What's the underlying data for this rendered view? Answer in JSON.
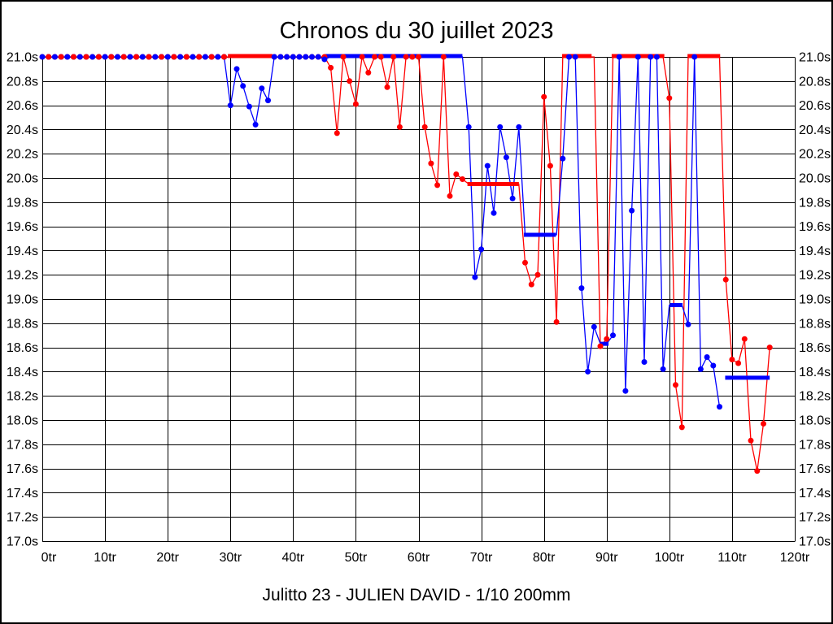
{
  "title": "Chronos du 30 juillet 2023",
  "subtitle": "Julitto 23 - JULIEN DAVID - 1/10 200mm",
  "colors": {
    "series_red": "#ff0000",
    "series_blue": "#0000ff",
    "grid": "#000000",
    "background": "#ffffff"
  },
  "chart_data": {
    "type": "line",
    "title": "Chronos du 30 juillet 2023",
    "subtitle": "Julitto 23 - JULIEN DAVID - 1/10 200mm",
    "x_unit": "tr",
    "y_unit": "s",
    "xlim": [
      0,
      120
    ],
    "ylim": [
      17.0,
      21.0
    ],
    "cap_value": 21.0,
    "grid": true,
    "x_tick_values": [
      0,
      10,
      20,
      30,
      40,
      50,
      60,
      70,
      80,
      90,
      100,
      110,
      120
    ],
    "x_ticks": [
      "0tr",
      "10tr",
      "20tr",
      "30tr",
      "40tr",
      "50tr",
      "60tr",
      "70tr",
      "80tr",
      "90tr",
      "100tr",
      "110tr",
      "120tr"
    ],
    "y_tick_values": [
      21.0,
      20.8,
      20.6,
      20.4,
      20.2,
      20.0,
      19.8,
      19.6,
      19.4,
      19.2,
      19.0,
      18.8,
      18.6,
      18.4,
      18.2,
      18.0,
      17.8,
      17.6,
      17.4,
      17.2,
      17.0
    ],
    "y_ticks": [
      "21.0s",
      "20.8s",
      "20.6s",
      "20.4s",
      "20.2s",
      "20.0s",
      "19.8s",
      "19.6s",
      "19.4s",
      "19.2s",
      "19.0s",
      "18.8s",
      "18.6s",
      "18.4s",
      "18.2s",
      "18.0s",
      "17.8s",
      "17.6s",
      "17.4s",
      "17.2s",
      "17.0s"
    ],
    "series": [
      {
        "name": "red",
        "color": "#ff0000",
        "points": [
          [
            0,
            21,
            1
          ],
          [
            1,
            21,
            1
          ],
          [
            2,
            21,
            1
          ],
          [
            3,
            21,
            1
          ],
          [
            4,
            21,
            1
          ],
          [
            5,
            21,
            1
          ],
          [
            6,
            21,
            1
          ],
          [
            7,
            21,
            1
          ],
          [
            8,
            21,
            1
          ],
          [
            9,
            21,
            1
          ],
          [
            10,
            21,
            1
          ],
          [
            11,
            21,
            1
          ],
          [
            12,
            21,
            1
          ],
          [
            13,
            21,
            1
          ],
          [
            14,
            21,
            1
          ],
          [
            15,
            21,
            1
          ],
          [
            16,
            21,
            1
          ],
          [
            17,
            21,
            1
          ],
          [
            18,
            21,
            1
          ],
          [
            19,
            21,
            1
          ],
          [
            20,
            21,
            1
          ],
          [
            21,
            21,
            1
          ],
          [
            22,
            21,
            1
          ],
          [
            23,
            21,
            1
          ],
          [
            24,
            21,
            1
          ],
          [
            25,
            21,
            1
          ],
          [
            26,
            21,
            1
          ],
          [
            27,
            21,
            1
          ],
          [
            28,
            21,
            1
          ],
          [
            29,
            21,
            1
          ],
          [
            30,
            21,
            0
          ],
          [
            31,
            21,
            0
          ],
          [
            32,
            21,
            0
          ],
          [
            33,
            21,
            0
          ],
          [
            34,
            21,
            0
          ],
          [
            35,
            21,
            0
          ],
          [
            36,
            21,
            0
          ],
          [
            37,
            21,
            1
          ],
          [
            38,
            21,
            1
          ],
          [
            39,
            21,
            1
          ],
          [
            40,
            21,
            1
          ],
          [
            41,
            21,
            1
          ],
          [
            42,
            21,
            1
          ],
          [
            43,
            21,
            1
          ],
          [
            44,
            21,
            1
          ],
          [
            45,
            21,
            1
          ],
          [
            46,
            20.91,
            1
          ],
          [
            47,
            20.37,
            1
          ],
          [
            48,
            21,
            1
          ],
          [
            49,
            20.8,
            1
          ],
          [
            50,
            20.61,
            1
          ],
          [
            51,
            21,
            1
          ],
          [
            52,
            20.87,
            1
          ],
          [
            53,
            21,
            1
          ],
          [
            54,
            21,
            1
          ],
          [
            55,
            20.75,
            1
          ],
          [
            56,
            21,
            1
          ],
          [
            57,
            20.42,
            1
          ],
          [
            58,
            21,
            1
          ],
          [
            59,
            21,
            1
          ],
          [
            60,
            21,
            1
          ],
          [
            61,
            20.42,
            1
          ],
          [
            62,
            20.12,
            1
          ],
          [
            63,
            19.94,
            1
          ],
          [
            64,
            21,
            1
          ],
          [
            65,
            19.85,
            1
          ],
          [
            66,
            20.03,
            1
          ],
          [
            67,
            19.99,
            1
          ],
          [
            68,
            19.95,
            0
          ],
          [
            69,
            19.95,
            0
          ],
          [
            70,
            19.95,
            0
          ],
          [
            71,
            19.95,
            0
          ],
          [
            72,
            19.95,
            0
          ],
          [
            73,
            19.95,
            0
          ],
          [
            74,
            19.95,
            0
          ],
          [
            75,
            19.95,
            0
          ],
          [
            76,
            19.95,
            0
          ],
          [
            77,
            19.3,
            1
          ],
          [
            78,
            19.12,
            1
          ],
          [
            79,
            19.2,
            1
          ],
          [
            80,
            20.67,
            1
          ],
          [
            81,
            20.1,
            1
          ],
          [
            82,
            18.81,
            1
          ],
          [
            83,
            21,
            0
          ],
          [
            84,
            21,
            0
          ],
          [
            85,
            21,
            0
          ],
          [
            86,
            21,
            0
          ],
          [
            87,
            21,
            0
          ],
          [
            88,
            21,
            0
          ],
          [
            89,
            18.61,
            1
          ],
          [
            90,
            18.67,
            1
          ],
          [
            91,
            21,
            0
          ],
          [
            92,
            21,
            0
          ],
          [
            93,
            21,
            0
          ],
          [
            94,
            21,
            0
          ],
          [
            95,
            21,
            0
          ],
          [
            96,
            21,
            0
          ],
          [
            97,
            21,
            0
          ],
          [
            98,
            21,
            0
          ],
          [
            99,
            21,
            0
          ],
          [
            100,
            20.66,
            1
          ],
          [
            101,
            18.29,
            1
          ],
          [
            102,
            17.94,
            1
          ],
          [
            103,
            21,
            0
          ],
          [
            104,
            21,
            0
          ],
          [
            105,
            21,
            0
          ],
          [
            106,
            21,
            0
          ],
          [
            107,
            21,
            0
          ],
          [
            108,
            21,
            0
          ],
          [
            109,
            19.16,
            1
          ],
          [
            110,
            18.5,
            1
          ],
          [
            111,
            18.47,
            1
          ],
          [
            112,
            18.67,
            1
          ],
          [
            113,
            17.83,
            1
          ],
          [
            114,
            17.58,
            1
          ],
          [
            115,
            17.97,
            1
          ],
          [
            116,
            18.6,
            1
          ]
        ],
        "bars": [
          [
            29.6,
            36.7,
            21.0
          ],
          [
            67.8,
            76.0,
            19.95
          ],
          [
            82.9,
            87.6,
            21.0
          ],
          [
            90.8,
            99.2,
            21.0
          ],
          [
            102.9,
            108.1,
            21.0
          ]
        ]
      },
      {
        "name": "blue",
        "color": "#0000ff",
        "points": [
          [
            0,
            21,
            1
          ],
          [
            1,
            21,
            1
          ],
          [
            2,
            21,
            1
          ],
          [
            3,
            21,
            1
          ],
          [
            4,
            21,
            1
          ],
          [
            5,
            21,
            1
          ],
          [
            6,
            21,
            1
          ],
          [
            7,
            21,
            1
          ],
          [
            8,
            21,
            1
          ],
          [
            9,
            21,
            1
          ],
          [
            10,
            21,
            1
          ],
          [
            11,
            21,
            1
          ],
          [
            12,
            21,
            1
          ],
          [
            13,
            21,
            1
          ],
          [
            14,
            21,
            1
          ],
          [
            15,
            21,
            1
          ],
          [
            16,
            21,
            1
          ],
          [
            17,
            21,
            1
          ],
          [
            18,
            21,
            1
          ],
          [
            19,
            21,
            1
          ],
          [
            20,
            21,
            1
          ],
          [
            21,
            21,
            1
          ],
          [
            22,
            21,
            1
          ],
          [
            23,
            21,
            1
          ],
          [
            24,
            21,
            1
          ],
          [
            25,
            21,
            1
          ],
          [
            26,
            21,
            1
          ],
          [
            27,
            21,
            1
          ],
          [
            28,
            21,
            1
          ],
          [
            29,
            21,
            1
          ],
          [
            30,
            20.6,
            1
          ],
          [
            31,
            20.9,
            1
          ],
          [
            32,
            20.76,
            1
          ],
          [
            33,
            20.59,
            1
          ],
          [
            34,
            20.44,
            1
          ],
          [
            35,
            20.74,
            1
          ],
          [
            36,
            20.64,
            1
          ],
          [
            37,
            21,
            1
          ],
          [
            38,
            21,
            1
          ],
          [
            39,
            21,
            1
          ],
          [
            40,
            21,
            1
          ],
          [
            41,
            21,
            1
          ],
          [
            42,
            21,
            1
          ],
          [
            43,
            21,
            1
          ],
          [
            44,
            21,
            1
          ],
          [
            45,
            20.98,
            1
          ],
          [
            46,
            21,
            0
          ],
          [
            47,
            21,
            0
          ],
          [
            48,
            21,
            0
          ],
          [
            49,
            21,
            0
          ],
          [
            50,
            21,
            0
          ],
          [
            51,
            21,
            0
          ],
          [
            52,
            21,
            0
          ],
          [
            53,
            21,
            0
          ],
          [
            54,
            21,
            0
          ],
          [
            55,
            21,
            0
          ],
          [
            56,
            21,
            0
          ],
          [
            57,
            21,
            0
          ],
          [
            58,
            21,
            0
          ],
          [
            59,
            21,
            0
          ],
          [
            60,
            21,
            0
          ],
          [
            61,
            21,
            0
          ],
          [
            62,
            21,
            0
          ],
          [
            63,
            21,
            0
          ],
          [
            64,
            21,
            0
          ],
          [
            65,
            21,
            0
          ],
          [
            66,
            21,
            0
          ],
          [
            67,
            21,
            0
          ],
          [
            68,
            20.42,
            1
          ],
          [
            69,
            19.18,
            1
          ],
          [
            70,
            19.41,
            1
          ],
          [
            71,
            20.1,
            1
          ],
          [
            72,
            19.71,
            1
          ],
          [
            73,
            20.42,
            1
          ],
          [
            74,
            20.17,
            1
          ],
          [
            75,
            19.83,
            1
          ],
          [
            76,
            20.42,
            1
          ],
          [
            77,
            19.53,
            0
          ],
          [
            78,
            19.53,
            0
          ],
          [
            79,
            19.53,
            0
          ],
          [
            80,
            19.53,
            0
          ],
          [
            81,
            19.53,
            0
          ],
          [
            82,
            19.53,
            0
          ],
          [
            83,
            20.16,
            1
          ],
          [
            84,
            21,
            1
          ],
          [
            85,
            21,
            1
          ],
          [
            86,
            19.09,
            1
          ],
          [
            87,
            18.4,
            1
          ],
          [
            88,
            18.77,
            1
          ],
          [
            89,
            18.63,
            0
          ],
          [
            90,
            18.63,
            0
          ],
          [
            91,
            18.7,
            1
          ],
          [
            92,
            21,
            1
          ],
          [
            93,
            18.24,
            1
          ],
          [
            94,
            19.73,
            1
          ],
          [
            95,
            21,
            1
          ],
          [
            96,
            18.48,
            1
          ],
          [
            97,
            21,
            1
          ],
          [
            98,
            21,
            1
          ],
          [
            99,
            18.42,
            1
          ],
          [
            100,
            18.95,
            0
          ],
          [
            101,
            18.95,
            0
          ],
          [
            102,
            18.95,
            0
          ],
          [
            103,
            18.79,
            1
          ],
          [
            104,
            21,
            1
          ],
          [
            105,
            18.42,
            1
          ],
          [
            106,
            18.52,
            1
          ],
          [
            107,
            18.45,
            1
          ],
          [
            108,
            18.11,
            1
          ]
        ],
        "bars": [
          [
            45.1,
            67.0,
            21.0
          ],
          [
            76.8,
            81.9,
            19.53
          ],
          [
            89.0,
            90.3,
            18.63
          ],
          [
            100.1,
            102.1,
            18.95
          ],
          [
            108.9,
            116.0,
            18.35
          ]
        ]
      }
    ]
  }
}
